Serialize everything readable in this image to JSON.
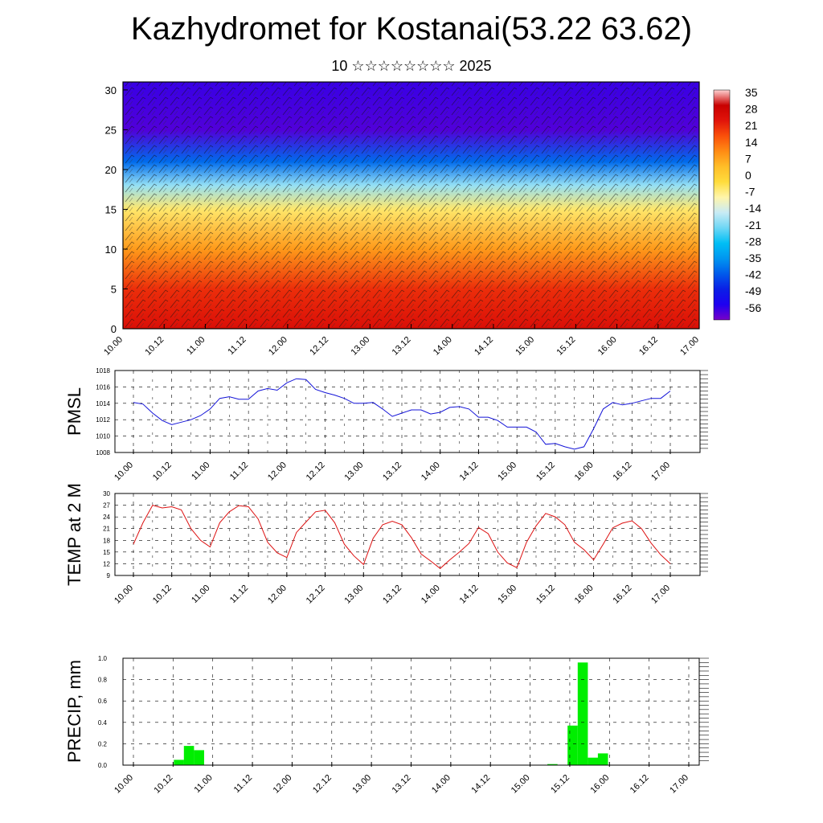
{
  "header": {
    "title": "Kazhydromet for Kostanai(53.22 63.62)",
    "subtitle": "10 ☆☆☆☆☆☆☆☆ 2025"
  },
  "colors": {
    "pmsl_line": "#1414d8",
    "temp_line": "#dd1111",
    "precip_bar": "#00ee00",
    "grid": "#000000"
  },
  "chart_data": [
    {
      "type": "heatmap",
      "title": "",
      "xlabel": "",
      "ylabel": "",
      "x_tick_labels": [
        "10.00",
        "10.12",
        "11.00",
        "11.12",
        "12.00",
        "12.12",
        "13.00",
        "13.12",
        "14.00",
        "14.12",
        "15.00",
        "15.12",
        "16.00",
        "16.12",
        "17.00"
      ],
      "y_ticks": [
        0,
        5,
        10,
        15,
        20,
        25,
        30
      ],
      "ylim": [
        0,
        31
      ],
      "colorbar_labels": [
        "35",
        "28",
        "21",
        "14",
        "7",
        "0",
        "-7",
        "-14",
        "-21",
        "-28",
        "-35",
        "-42",
        "-49",
        "-56"
      ],
      "colorbar_range": [
        -63,
        42
      ],
      "approx_profile": [
        {
          "level": 0,
          "value": 30
        },
        {
          "level": 5,
          "value": 25
        },
        {
          "level": 10,
          "value": 12
        },
        {
          "level": 15,
          "value": -3
        },
        {
          "level": 18,
          "value": -18
        },
        {
          "level": 21,
          "value": -40
        },
        {
          "level": 25,
          "value": -60
        },
        {
          "level": 31,
          "value": -58
        }
      ],
      "overlay": "wind barbs"
    },
    {
      "type": "line",
      "ylabel": "PMSL",
      "x_tick_labels": [
        "10.00",
        "10.12",
        "11.00",
        "11.12",
        "12.00",
        "12.12",
        "13.00",
        "13.12",
        "14.00",
        "14.12",
        "15.00",
        "15.12",
        "16.00",
        "16.12",
        "17.00"
      ],
      "y_ticks": [
        1008,
        1010,
        1012,
        1014,
        1016,
        1018
      ],
      "ylim": [
        1008,
        1018
      ],
      "grid": true,
      "series": [
        {
          "values": [
            1014.1,
            1013.9,
            1012.8,
            1011.9,
            1011.4,
            1011.7,
            1012.0,
            1012.5,
            1013.3,
            1014.6,
            1014.8,
            1014.5,
            1014.5,
            1015.5,
            1015.8,
            1015.6,
            1016.5,
            1017.0,
            1016.9,
            1015.7,
            1015.3,
            1015.0,
            1014.6,
            1014.0,
            1014.0,
            1014.1,
            1013.3,
            1012.4,
            1012.8,
            1013.2,
            1013.2,
            1012.7,
            1012.9,
            1013.5,
            1013.6,
            1013.3,
            1012.3,
            1012.3,
            1011.9,
            1011.1,
            1011.1,
            1011.1,
            1010.5,
            1009.0,
            1009.1,
            1008.7,
            1008.4,
            1008.7,
            1010.9,
            1013.3,
            1014.1,
            1013.8,
            1014.0,
            1014.3,
            1014.6,
            1014.6,
            1015.5
          ]
        }
      ]
    },
    {
      "type": "line",
      "ylabel": "TEMP at 2 M",
      "x_tick_labels": [
        "10.00",
        "10.12",
        "11.00",
        "11.12",
        "12.00",
        "12.12",
        "13.00",
        "13.12",
        "14.00",
        "14.12",
        "15.00",
        "15.12",
        "16.00",
        "16.12",
        "17.00"
      ],
      "y_ticks": [
        9,
        12,
        15,
        18,
        21,
        24,
        27,
        30
      ],
      "ylim": [
        9,
        30
      ],
      "grid": true,
      "series": [
        {
          "values": [
            17.0,
            22.5,
            27.0,
            26.3,
            26.6,
            25.8,
            21.0,
            18.0,
            16.3,
            22.5,
            25.3,
            26.9,
            26.6,
            23.5,
            17.5,
            14.8,
            13.6,
            20.0,
            22.7,
            25.3,
            25.7,
            22.5,
            17.0,
            14.0,
            11.8,
            18.5,
            22.0,
            22.9,
            22.0,
            18.7,
            14.5,
            12.7,
            10.8,
            13.0,
            15.0,
            17.2,
            21.3,
            19.7,
            15.0,
            12.2,
            11.0,
            17.5,
            21.7,
            24.9,
            24.0,
            22.0,
            17.5,
            15.6,
            13.0,
            17.0,
            21.2,
            22.4,
            23.0,
            21.0,
            17.3,
            14.3,
            12.0
          ]
        }
      ]
    },
    {
      "type": "bar",
      "ylabel": "PRECIP, mm",
      "x_tick_labels": [
        "10.00",
        "10.12",
        "11.00",
        "11.12",
        "12.00",
        "12.12",
        "13.00",
        "13.12",
        "14.00",
        "14.12",
        "15.00",
        "15.12",
        "16.00",
        "16.12",
        "17.00"
      ],
      "y_ticks": [
        "0.0",
        "0.2",
        "0.4",
        "0.6",
        "0.8",
        "1.0"
      ],
      "ylim": [
        0,
        1.0
      ],
      "grid": true,
      "bin_hours": 3,
      "values": [
        0,
        0,
        0,
        0,
        0.05,
        0.18,
        0.14,
        0,
        0,
        0,
        0,
        0,
        0,
        0,
        0,
        0,
        0,
        0,
        0,
        0,
        0,
        0,
        0,
        0,
        0,
        0,
        0,
        0,
        0,
        0,
        0,
        0,
        0,
        0,
        0,
        0,
        0,
        0,
        0,
        0,
        0,
        0.01,
        0,
        0.37,
        0.96,
        0.07,
        0.11,
        0,
        0,
        0,
        0,
        0,
        0,
        0,
        0,
        0
      ]
    }
  ]
}
